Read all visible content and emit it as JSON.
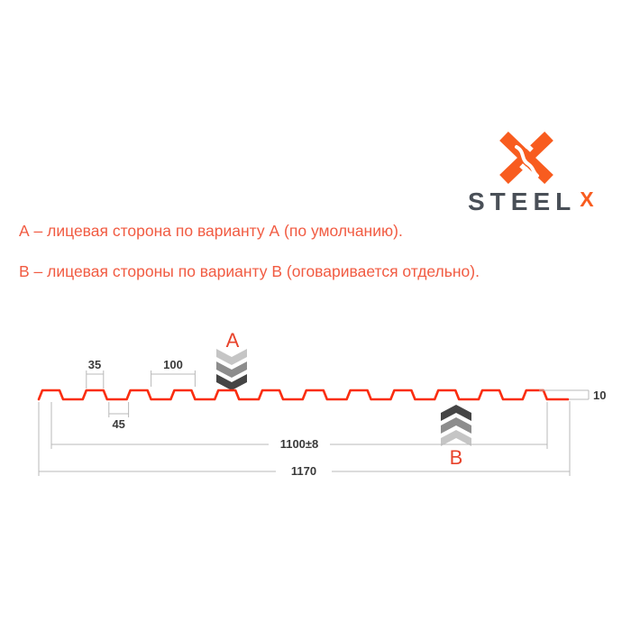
{
  "logo": {
    "wordmark": "STEEL",
    "sup_x": "X"
  },
  "notes": {
    "line_a": "А – лицевая сторона по варианту А (по умолчанию).",
    "line_b": "В – лицевая стороны по варианту В (оговаривается отдельно)."
  },
  "diagram": {
    "marker_a": "A",
    "marker_b": "B",
    "dims": {
      "rib_top_width": "35",
      "rib_pitch": "100",
      "rib_bottom_width": "45",
      "cover_width": "1100±8",
      "overall_width": "1170",
      "profile_height": "10"
    },
    "profile": {
      "startX": 43,
      "endX": 630,
      "ribY": 78,
      "valleyY": 88,
      "slope": 4,
      "topFlat": 19,
      "pitch": 48.8,
      "ribCount": 12
    }
  },
  "colors": {
    "accent": "#f85c1f",
    "steel_text": "#494f57",
    "note_text": "#f15b42",
    "profile_line": "#fa2d0f",
    "marker_letter": "#e8432b",
    "dim_line": "#b9b9b9",
    "dim_text": "#3a3a3a",
    "chev_light": "#c5c5c5",
    "chev_mid": "#8d8d8d",
    "chev_dark": "#454545"
  }
}
